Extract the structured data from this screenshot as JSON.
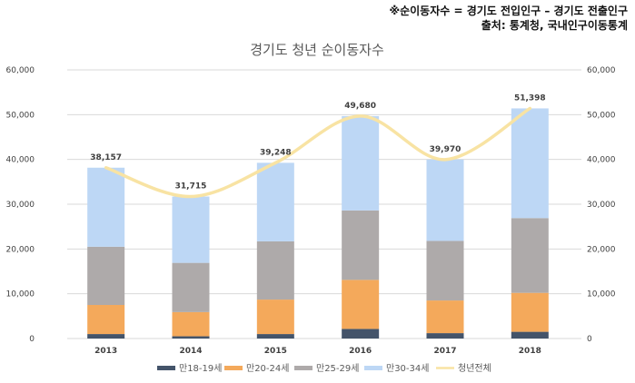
{
  "note": {
    "line1": "※순이동자수 = 경기도 전입인구 – 경기도 전출인구",
    "line2": "출처: 통계청, 국내인구이동통계"
  },
  "chart_data": {
    "type": "bar",
    "stacked": true,
    "title": "경기도 청년 순이동자수",
    "xlabel": "",
    "ylabel": "",
    "categories": [
      "2013",
      "2014",
      "2015",
      "2016",
      "2017",
      "2018"
    ],
    "ylim": [
      0,
      60000
    ],
    "y_ticks": [
      0,
      10000,
      20000,
      30000,
      40000,
      50000,
      60000
    ],
    "y_tick_labels": [
      "0",
      "10,000",
      "20,000",
      "30,000",
      "40,000",
      "50,000",
      "60,000"
    ],
    "y2_ticks": [
      0,
      10000,
      20000,
      30000,
      40000,
      50000,
      60000
    ],
    "y2_tick_labels": [
      "0",
      "10,000",
      "20,000",
      "30,000",
      "40,000",
      "50,000",
      "60,000"
    ],
    "grid": true,
    "series": [
      {
        "name": "만18-19세",
        "color": "#44546a",
        "values": [
          1000,
          500,
          1000,
          2150,
          1200,
          1500
        ]
      },
      {
        "name": "만20-24세",
        "color": "#f4a95b",
        "values": [
          6500,
          5400,
          7700,
          10950,
          7300,
          8700
        ]
      },
      {
        "name": "만25-29세",
        "color": "#aeaaaa",
        "values": [
          13000,
          11000,
          13000,
          15500,
          13300,
          16700
        ]
      },
      {
        "name": "만30-34세",
        "color": "#bdd7f5",
        "values": [
          17657,
          14815,
          17548,
          21080,
          18170,
          24498
        ]
      }
    ],
    "line_series": {
      "name": "청년전체",
      "color": "#f8e3a3",
      "values": [
        38157,
        31715,
        39248,
        49680,
        39970,
        51398
      ],
      "labels": [
        "38,157",
        "31,715",
        "39,248",
        "49,680",
        "39,970",
        "51,398"
      ],
      "smooth": true
    },
    "legend": {
      "position": "bottom",
      "items": [
        {
          "label": "만18-19세",
          "color": "#44546a",
          "kind": "bar"
        },
        {
          "label": "만20-24세",
          "color": "#f4a95b",
          "kind": "bar"
        },
        {
          "label": "만25-29세",
          "color": "#aeaaaa",
          "kind": "bar"
        },
        {
          "label": "만30-34세",
          "color": "#bdd7f5",
          "kind": "bar"
        },
        {
          "label": "청년전체",
          "color": "#f8e3a3",
          "kind": "line"
        }
      ]
    }
  }
}
